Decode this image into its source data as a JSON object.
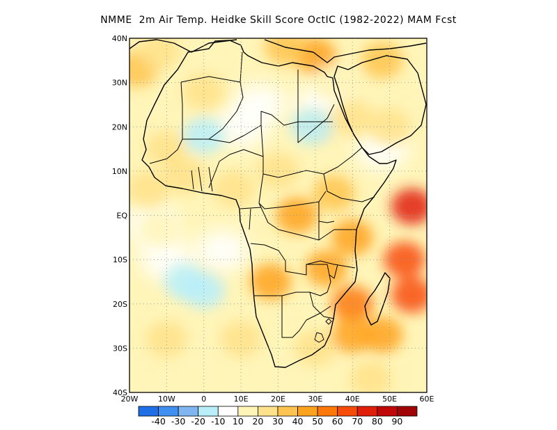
{
  "title": "NMME  2m Air Temp. Heidke Skill Score OctIC (1982-2022) MAM Fcst",
  "map": {
    "region": "Africa",
    "lon_range": [
      -20,
      60
    ],
    "lat_range": [
      -40,
      40
    ],
    "lat_ticks": [
      {
        "value": 40,
        "label": "40N"
      },
      {
        "value": 30,
        "label": "30N"
      },
      {
        "value": 20,
        "label": "20N"
      },
      {
        "value": 10,
        "label": "10N"
      },
      {
        "value": 0,
        "label": "EQ"
      },
      {
        "value": -10,
        "label": "10S"
      },
      {
        "value": -20,
        "label": "20S"
      },
      {
        "value": -30,
        "label": "30S"
      },
      {
        "value": -40,
        "label": "40S"
      }
    ],
    "lon_ticks": [
      {
        "value": -20,
        "label": "20W"
      },
      {
        "value": -10,
        "label": "10W"
      },
      {
        "value": 0,
        "label": "0"
      },
      {
        "value": 10,
        "label": "10E"
      },
      {
        "value": 20,
        "label": "20E"
      },
      {
        "value": 30,
        "label": "30E"
      },
      {
        "value": 40,
        "label": "40E"
      },
      {
        "value": 50,
        "label": "50E"
      },
      {
        "value": 60,
        "label": "60E"
      }
    ],
    "grid": "dotted",
    "colorbar": {
      "labels": [
        "-40",
        "-30",
        "-20",
        "-10",
        "10",
        "20",
        "30",
        "40",
        "50",
        "60",
        "70",
        "80",
        "90"
      ],
      "colors": [
        "#1e6fe6",
        "#3f8ff0",
        "#7fb6f2",
        "#b8eefa",
        "#ffffff",
        "#fff5b8",
        "#ffe28a",
        "#ffc450",
        "#ffa21e",
        "#ff7808",
        "#f84c0a",
        "#e01e0a",
        "#c00808",
        "#a00505"
      ]
    },
    "patches": [
      {
        "lon": 35,
        "lat": 5,
        "value": 35
      },
      {
        "lon": 25,
        "lat": 0,
        "value": 40
      },
      {
        "lon": 18,
        "lat": -15,
        "value": 45
      },
      {
        "lon": 40,
        "lat": -5,
        "value": 45
      },
      {
        "lon": 33,
        "lat": -12,
        "value": 40
      },
      {
        "lon": 56,
        "lat": 2,
        "value": 70
      },
      {
        "lon": 54,
        "lat": -10,
        "value": 60
      },
      {
        "lon": 56,
        "lat": -18,
        "value": 60
      },
      {
        "lon": 40,
        "lat": -20,
        "value": 50
      },
      {
        "lon": 40,
        "lat": -27,
        "value": 45
      },
      {
        "lon": 48,
        "lat": -27,
        "value": 40
      },
      {
        "lon": 30,
        "lat": 36,
        "value": 40
      },
      {
        "lon": 22,
        "lat": 38,
        "value": 30
      },
      {
        "lon": 48,
        "lat": 35,
        "value": 30
      },
      {
        "lon": -18,
        "lat": 33,
        "value": 30
      },
      {
        "lon": -12,
        "lat": 37,
        "value": 25
      },
      {
        "lon": 0,
        "lat": 28,
        "value": 20
      },
      {
        "lon": -5,
        "lat": 9,
        "value": 25
      },
      {
        "lon": -15,
        "lat": 6,
        "value": 25
      },
      {
        "lon": 8,
        "lat": 6,
        "value": 25
      },
      {
        "lon": 20,
        "lat": 10,
        "value": 20
      },
      {
        "lon": 30,
        "lat": 20,
        "value": 20
      },
      {
        "lon": 40,
        "lat": 22,
        "value": 25
      },
      {
        "lon": 50,
        "lat": 20,
        "value": 25
      },
      {
        "lon": -10,
        "lat": 15,
        "value": 20
      },
      {
        "lon": 30,
        "lat": -30,
        "value": 20
      },
      {
        "lon": 10,
        "lat": -28,
        "value": 20
      },
      {
        "lon": 0,
        "lat": -32,
        "value": 15
      },
      {
        "lon": -10,
        "lat": -28,
        "value": 20
      },
      {
        "lon": 45,
        "lat": -37,
        "value": 25
      },
      {
        "lon": 20,
        "lat": -36,
        "value": 15
      },
      {
        "lon": -12,
        "lat": -3,
        "value": 15
      },
      {
        "lon": 35,
        "lat": 30,
        "value": 15
      },
      {
        "lon": 0,
        "lat": -17,
        "value": -20
      },
      {
        "lon": -5,
        "lat": -15,
        "value": -15
      },
      {
        "lon": 0,
        "lat": 18,
        "value": -15
      },
      {
        "lon": 29,
        "lat": 20,
        "value": -12
      }
    ],
    "white_zones": [
      {
        "lon": -14,
        "lat": -2
      },
      {
        "lon": 15,
        "lat": 25
      },
      {
        "lon": 32,
        "lat": 25
      },
      {
        "lon": 48,
        "lat": 15
      },
      {
        "lon": 10,
        "lat": 20
      },
      {
        "lon": 5,
        "lat": -8
      },
      {
        "lon": -10,
        "lat": -10
      }
    ]
  }
}
